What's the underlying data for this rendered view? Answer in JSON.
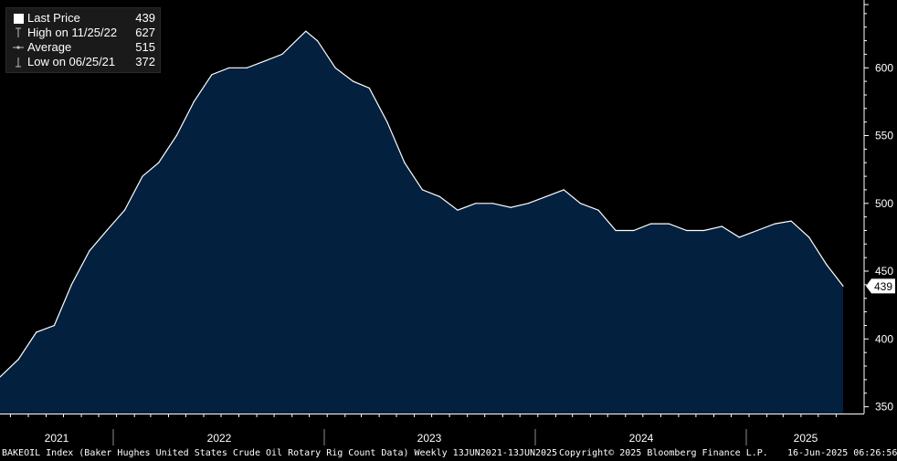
{
  "legend": {
    "rows": [
      {
        "label": "Last Price",
        "value": "439",
        "icon": "square-swatch-icon"
      },
      {
        "label": "High on 11/25/22",
        "value": "627",
        "icon": "high-marker-icon"
      },
      {
        "label": "Average",
        "value": "515",
        "icon": "average-marker-icon"
      },
      {
        "label": "Low on 06/25/21",
        "value": "372",
        "icon": "low-marker-icon"
      }
    ]
  },
  "footer": {
    "description": "BAKEOIL Index (Baker Hughes United States Crude Oil Rotary Rig Count Data)  Weekly 13JUN2021-13JUN2025",
    "copyright": "Copyright© 2025 Bloomberg Finance L.P.",
    "timestamp": "16-Jun-2025 06:26:56"
  },
  "colors": {
    "background": "#000000",
    "area_fill": "#04203f",
    "line": "#ffffff",
    "axis": "#ffffff",
    "last_price_label_bg": "#ffffff",
    "last_price_label_text": "#000000"
  },
  "chart_data": {
    "type": "area",
    "series": [
      {
        "name": "BAKEOIL Index",
        "x": [
          "2021-06-13",
          "2021-07-15",
          "2021-08-15",
          "2021-09-15",
          "2021-10-15",
          "2021-11-15",
          "2021-12-15",
          "2022-01-15",
          "2022-02-15",
          "2022-03-15",
          "2022-04-15",
          "2022-05-15",
          "2022-06-15",
          "2022-07-15",
          "2022-08-15",
          "2022-09-15",
          "2022-10-15",
          "2022-11-25",
          "2022-12-15",
          "2023-01-15",
          "2023-02-15",
          "2023-03-15",
          "2023-04-15",
          "2023-05-15",
          "2023-06-15",
          "2023-07-15",
          "2023-08-15",
          "2023-09-15",
          "2023-10-15",
          "2023-11-15",
          "2023-12-15",
          "2024-01-15",
          "2024-02-15",
          "2024-03-15",
          "2024-04-15",
          "2024-05-15",
          "2024-06-15",
          "2024-07-15",
          "2024-08-15",
          "2024-09-15",
          "2024-10-15",
          "2024-11-15",
          "2024-12-15",
          "2025-01-15",
          "2025-02-15",
          "2025-03-15",
          "2025-04-15",
          "2025-05-15",
          "2025-06-13"
        ],
        "values": [
          372,
          385,
          405,
          410,
          440,
          465,
          480,
          495,
          520,
          530,
          550,
          575,
          595,
          600,
          600,
          605,
          610,
          627,
          620,
          600,
          590,
          585,
          560,
          530,
          510,
          505,
          495,
          500,
          500,
          497,
          500,
          505,
          510,
          500,
          495,
          480,
          480,
          485,
          485,
          480,
          480,
          483,
          475,
          480,
          485,
          487,
          475,
          455,
          439
        ]
      }
    ],
    "x_ticks": [
      "2021",
      "2022",
      "2023",
      "2024",
      "2025"
    ],
    "y_ticks": [
      "350",
      "400",
      "450",
      "500",
      "550",
      "600"
    ],
    "ylim": [
      345,
      650
    ],
    "last_price": "439",
    "grid": false,
    "legend_position": "top-left"
  }
}
